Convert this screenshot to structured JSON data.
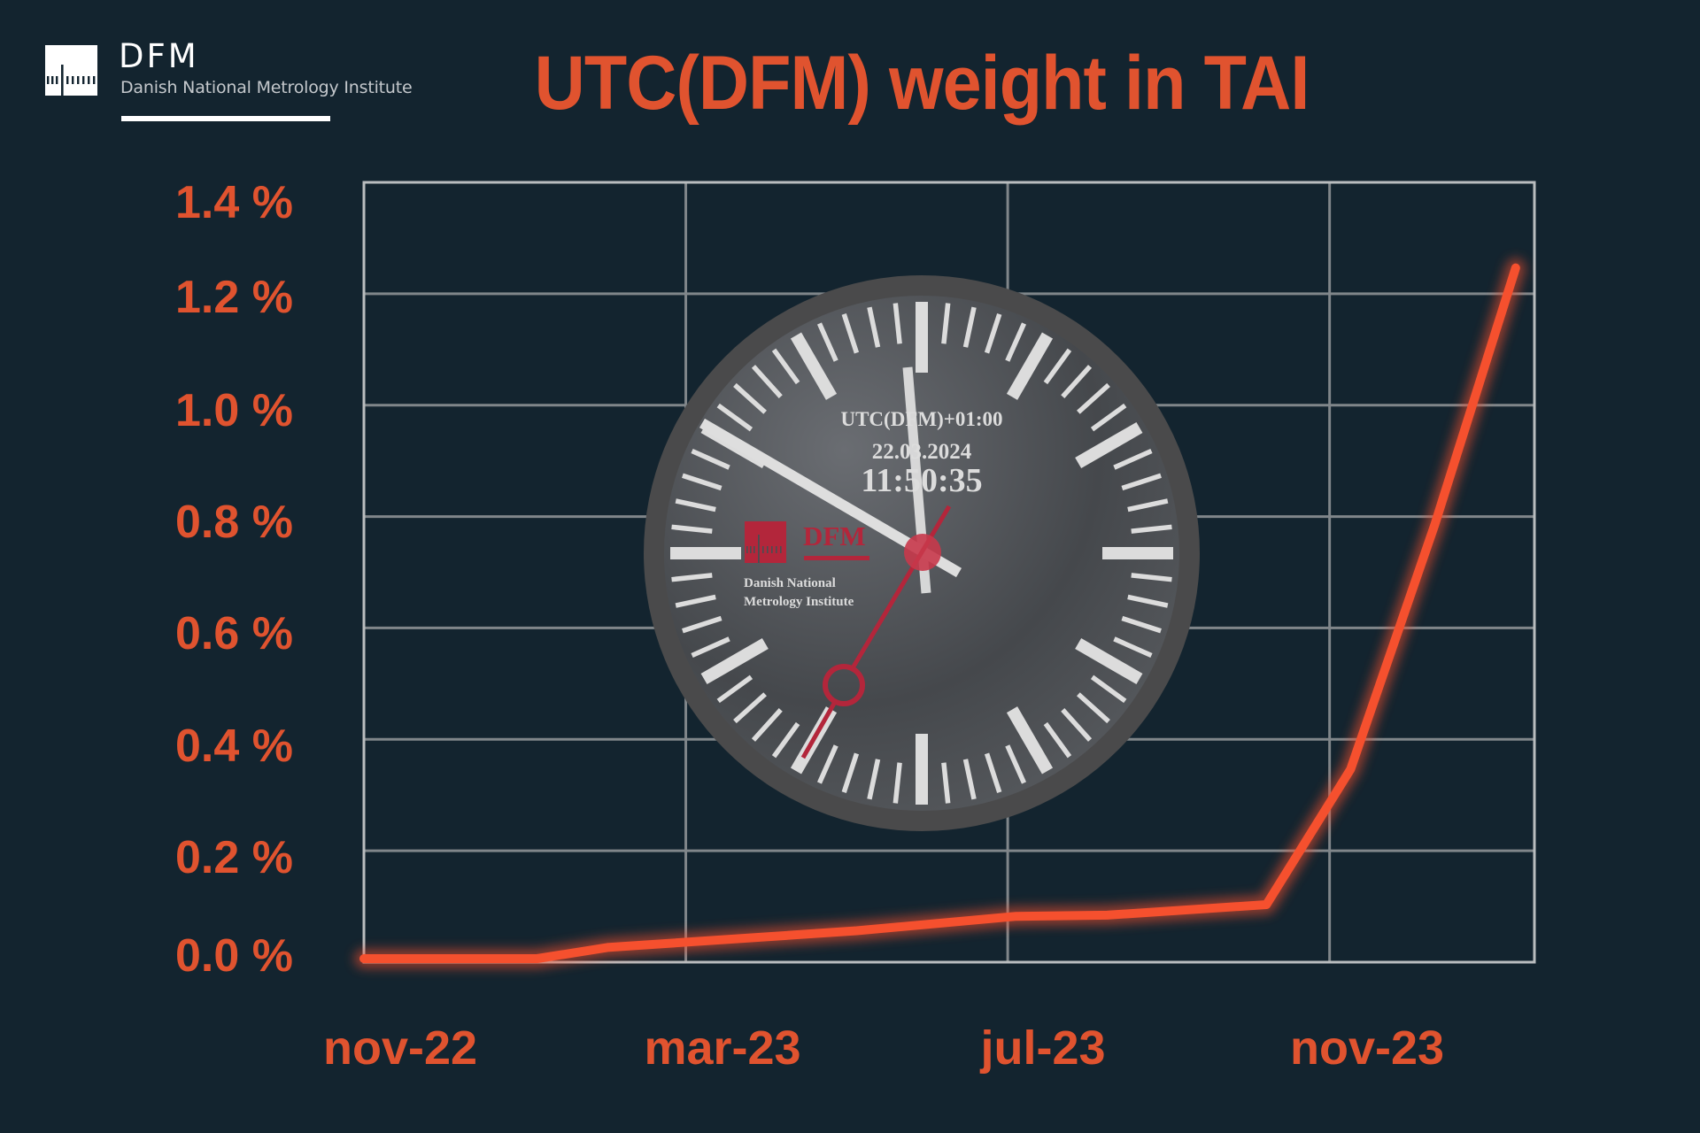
{
  "header": {
    "logo": {
      "name": "DFM",
      "subtitle": "Danish National Metrology Institute",
      "icon": "dfm-ruler-logo-icon"
    },
    "title": "UTC(DFM) weight in TAI"
  },
  "colors": {
    "background": "#13242f",
    "accent": "#e0532f",
    "line": "#f5502e",
    "grid": "#80868a",
    "frame": "#b9bdbf",
    "clock_ring": "#4a4a4b",
    "clock_red": "#b3263b",
    "clock_text": "#dcdcdc"
  },
  "clock": {
    "timezone_label": "UTC(DFM)+01:00",
    "date": "22.03.2024",
    "time": "11:50:35",
    "logo_name": "DFM",
    "logo_line1": "Danish National",
    "logo_line2": "Metrology Institute"
  },
  "chart_data": {
    "type": "line",
    "title": "UTC(DFM) weight in TAI",
    "xlabel": "",
    "ylabel": "",
    "ylim": [
      0,
      1.4
    ],
    "y_unit": "%",
    "grid": true,
    "legend": null,
    "y_ticks": [
      "1.4 %",
      "1.2 %",
      "1.0 %",
      "0.8 %",
      "0.6 %",
      "0.4 %",
      "0.2 %",
      "0.0 %"
    ],
    "y_tick_values": [
      1.4,
      1.2,
      1.0,
      0.8,
      0.6,
      0.4,
      0.2,
      0.0
    ],
    "categories": [
      "nov-22",
      "mar-23",
      "jul-23",
      "nov-23"
    ],
    "x_tick_positions": [
      0.031,
      0.306,
      0.58,
      0.855
    ],
    "x_grid_positions": [
      0.275,
      0.55,
      0.825
    ],
    "series": [
      {
        "name": "UTC(DFM) weight",
        "points": [
          {
            "x": 0.0,
            "y": 0.0
          },
          {
            "x": 0.148,
            "y": 0.0
          },
          {
            "x": 0.208,
            "y": 0.02
          },
          {
            "x": 0.421,
            "y": 0.05
          },
          {
            "x": 0.557,
            "y": 0.076
          },
          {
            "x": 0.635,
            "y": 0.078
          },
          {
            "x": 0.771,
            "y": 0.097
          },
          {
            "x": 0.843,
            "y": 0.34
          },
          {
            "x": 0.915,
            "y": 0.78
          },
          {
            "x": 0.984,
            "y": 1.24
          }
        ]
      }
    ]
  }
}
